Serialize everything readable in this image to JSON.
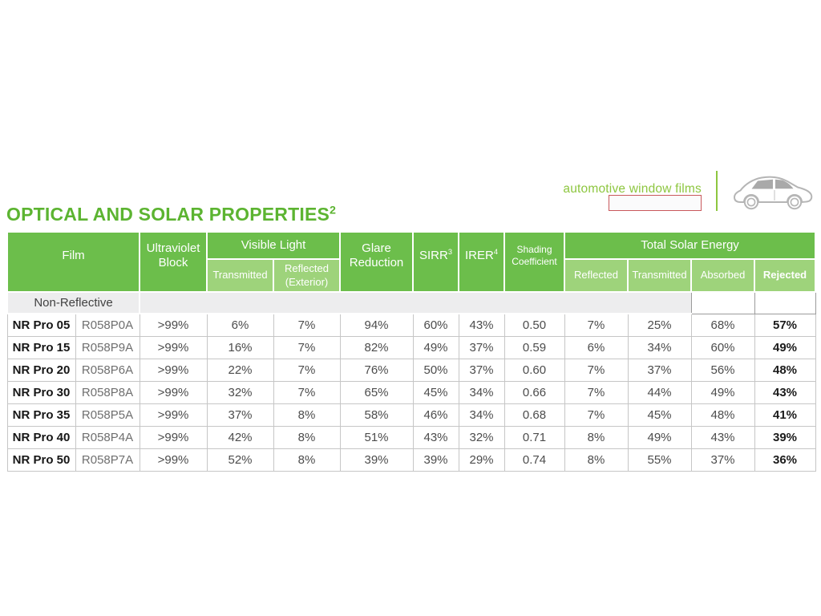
{
  "title": {
    "text": "OPTICAL AND SOLAR PROPERTIES",
    "superscript": "2"
  },
  "brand": {
    "tagline": "automotive window films"
  },
  "colors": {
    "title_green": "#5cb431",
    "header_green": "#6cbe4b",
    "subheader_green": "#9ed37b",
    "tagline_green": "#8dc63f",
    "section_gray": "#ededee",
    "redaction_box_border": "#c9585c",
    "cell_border_gray": "#c6c6c6"
  },
  "table": {
    "header": {
      "film": "Film",
      "ultraviolet_block": "Ultraviolet Block",
      "visible_light": "Visible Light",
      "vl_transmitted": "Transmitted",
      "vl_reflected": "Reflected (Exterior)",
      "glare_reduction": "Glare Reduction",
      "sirr": "SIRR",
      "sirr_sup": "3",
      "irer": "IRER",
      "irer_sup": "4",
      "shading_coefficient": "Shading Coefficient",
      "total_solar_energy": "Total Solar Energy",
      "tse_reflected": "Reflected",
      "tse_transmitted": "Transmitted",
      "tse_absorbed": "Absorbed",
      "tse_rejected": "Rejected"
    },
    "section": {
      "label": "Non-Reflective"
    },
    "row_keys": [
      "name",
      "code",
      "uv",
      "vlt",
      "vlr",
      "glare",
      "sirr",
      "irer",
      "sc",
      "tser",
      "tset",
      "tsea",
      "tsej"
    ],
    "rows": [
      {
        "name": "NR Pro 05",
        "code": "R058P0A",
        "uv": ">99%",
        "vlt": "6%",
        "vlr": "7%",
        "glare": "94%",
        "sirr": "60%",
        "irer": "43%",
        "sc": "0.50",
        "tser": "7%",
        "tset": "25%",
        "tsea": "68%",
        "tsej": "57%"
      },
      {
        "name": "NR Pro 15",
        "code": "R058P9A",
        "uv": ">99%",
        "vlt": "16%",
        "vlr": "7%",
        "glare": "82%",
        "sirr": "49%",
        "irer": "37%",
        "sc": "0.59",
        "tser": "6%",
        "tset": "34%",
        "tsea": "60%",
        "tsej": "49%"
      },
      {
        "name": "NR Pro 20",
        "code": "R058P6A",
        "uv": ">99%",
        "vlt": "22%",
        "vlr": "7%",
        "glare": "76%",
        "sirr": "50%",
        "irer": "37%",
        "sc": "0.60",
        "tser": "7%",
        "tset": "37%",
        "tsea": "56%",
        "tsej": "48%"
      },
      {
        "name": "NR Pro 30",
        "code": "R058P8A",
        "uv": ">99%",
        "vlt": "32%",
        "vlr": "7%",
        "glare": "65%",
        "sirr": "45%",
        "irer": "34%",
        "sc": "0.66",
        "tser": "7%",
        "tset": "44%",
        "tsea": "49%",
        "tsej": "43%"
      },
      {
        "name": "NR Pro 35",
        "code": "R058P5A",
        "uv": ">99%",
        "vlt": "37%",
        "vlr": "8%",
        "glare": "58%",
        "sirr": "46%",
        "irer": "34%",
        "sc": "0.68",
        "tser": "7%",
        "tset": "45%",
        "tsea": "48%",
        "tsej": "41%"
      },
      {
        "name": "NR Pro 40",
        "code": "R058P4A",
        "uv": ">99%",
        "vlt": "42%",
        "vlr": "8%",
        "glare": "51%",
        "sirr": "43%",
        "irer": "32%",
        "sc": "0.71",
        "tser": "8%",
        "tset": "49%",
        "tsea": "43%",
        "tsej": "39%"
      },
      {
        "name": "NR Pro 50",
        "code": "R058P7A",
        "uv": ">99%",
        "vlt": "52%",
        "vlr": "8%",
        "glare": "39%",
        "sirr": "39%",
        "irer": "29%",
        "sc": "0.74",
        "tser": "8%",
        "tset": "55%",
        "tsea": "37%",
        "tsej": "36%"
      }
    ]
  }
}
